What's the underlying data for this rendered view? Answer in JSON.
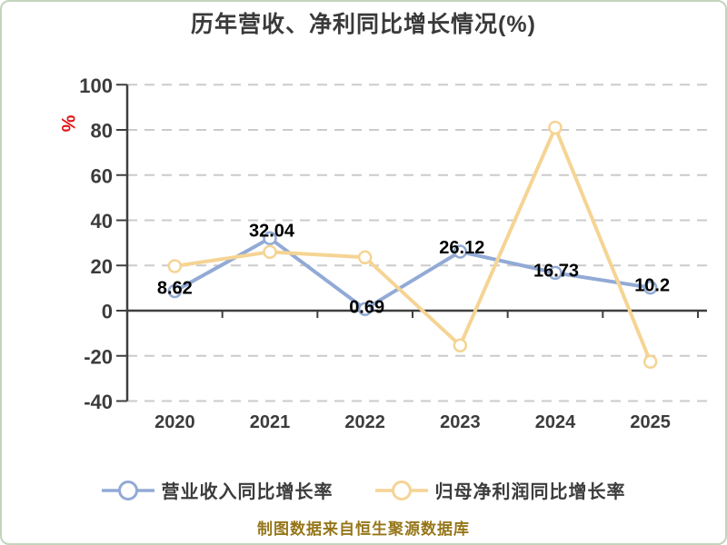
{
  "title": "历年营收、净利同比增长情况(%)",
  "y_axis_unit": "%",
  "footer": "制图数据来自恒生聚源数据库",
  "colors": {
    "revenue_line": "#92AAD5",
    "profit_line": "#F5D494",
    "axis": "#3F3F3F",
    "grid": "#CBCBCB",
    "tick_text": "#3C3C3C",
    "data_label": "#000000",
    "unit_text": "#E01414",
    "footer_text": "#96761A",
    "marker_fill": "#FFFFFF"
  },
  "legend": {
    "items": [
      {
        "label": "营业收入同比增长率",
        "color": "#92AAD5"
      },
      {
        "label": "归母净利润同比增长率",
        "color": "#F5D494"
      }
    ]
  },
  "chart_data": {
    "type": "line",
    "categories": [
      "2020",
      "2021",
      "2022",
      "2023",
      "2024",
      "2025"
    ],
    "series": [
      {
        "name": "营业收入同比增长率",
        "color": "#92AAD5",
        "values": [
          8.62,
          32.04,
          0.69,
          26.12,
          16.73,
          10.2
        ],
        "labels": [
          "8.62",
          "32.04",
          "0.69",
          "26.12",
          "16.73",
          "10.2"
        ],
        "labels_shown": true
      },
      {
        "name": "归母净利润同比增长率",
        "color": "#F5D494",
        "values": [
          19.7,
          26.0,
          23.6,
          -15.4,
          81.0,
          -22.6
        ],
        "labels": [],
        "labels_shown": false
      }
    ],
    "title": "历年营收、净利同比增长情况(%)",
    "xlabel": "",
    "ylabel": "%",
    "ylim": [
      -40,
      100
    ],
    "y_ticks": [
      100,
      80,
      60,
      40,
      20,
      0,
      -20,
      -40
    ],
    "grid": "horizontal-dashed",
    "zero_axis": "solid",
    "legend_position": "bottom",
    "marker": "hollow-circle"
  }
}
